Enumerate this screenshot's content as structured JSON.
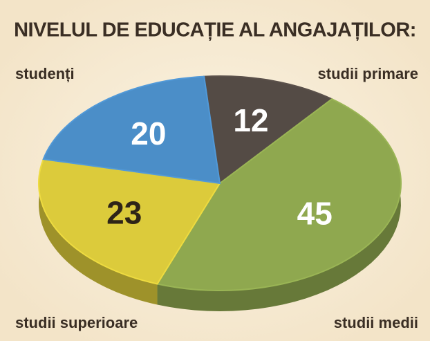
{
  "chart_data": {
    "type": "pie",
    "title": "NIVELUL DE EDUCAȚIE AL ANGAJAȚILOR:",
    "categories": [
      "studii primare",
      "studii medii",
      "studii superioare",
      "studenți"
    ],
    "values": [
      12,
      45,
      23,
      20
    ],
    "colors": [
      "#544b45",
      "#8fa84f",
      "#dccb3b",
      "#4b8ec8"
    ]
  }
}
